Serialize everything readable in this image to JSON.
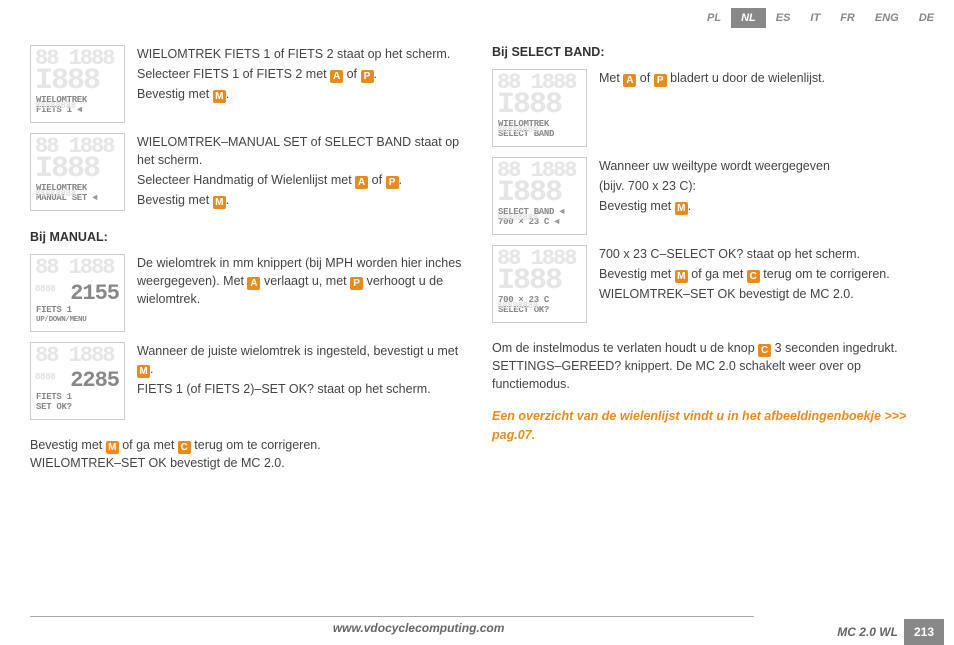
{
  "lang_tabs": [
    "PL",
    "NL",
    "ES",
    "IT",
    "FR",
    "ENG",
    "DE"
  ],
  "active_lang": "NL",
  "left": {
    "item1": {
      "lcd1": "WIELOMTREK",
      "lcd2": "FIETS 1",
      "text1": "WIELOMTREK FIETS 1 of FIETS 2 staat op het scherm.",
      "text2a": "Selecteer FIETS 1 of FIETS 2 met ",
      "text2b": " of ",
      "text2c": ".",
      "text3a": "Bevestig met ",
      "text3b": "."
    },
    "item2": {
      "lcd1": "WIELOMTREK",
      "lcd2": "MANUAL SET",
      "text1": "WIELOMTREK–MANUAL SET of SELECT BAND staat op het scherm.",
      "text2a": "Selecteer Handmatig of Wielenlijst met ",
      "text2b": " of ",
      "text2c": ".",
      "text3a": "Bevestig met ",
      "text3b": "."
    },
    "heading_manual": "Bij MANUAL:",
    "item3": {
      "lcd_big": "2155",
      "lcd1": "FIETS 1",
      "lcd2": "UP/DOWN/MENU",
      "text1a": "De wielomtrek in mm knippert (bij MPH worden hier inches weergegeven). Met ",
      "text1b": " verlaagt u, met ",
      "text1c": " verhoogt u de wielomtrek."
    },
    "item4": {
      "lcd_big": "2285",
      "lcd1": "FIETS 1",
      "lcd2": "SET OK?",
      "text1a": "Wanneer de juiste wielomtrek is ingesteld, bevestigt u met ",
      "text1b": ".",
      "text2": "FIETS 1 (of FIETS 2)–SET OK? staat op het scherm."
    },
    "bottom1a": "Bevestig met ",
    "bottom1b": " of ga met ",
    "bottom1c": " terug om te corrigeren.",
    "bottom2": "WIELOMTREK–SET OK bevestigt de MC 2.0."
  },
  "right": {
    "heading_band": "Bij SELECT BAND:",
    "item1": {
      "lcd1": "WIELOMTREK",
      "lcd2": "SELECT BAND",
      "text1a": "Met ",
      "text1b": " of ",
      "text1c": " bladert u door de wielenlijst."
    },
    "item2": {
      "lcd1": "SELECT BAND",
      "lcd2": "700 × 23 C",
      "text1": "Wanneer uw weiltype wordt weergegeven",
      "text2": "(bijv. 700 x 23 C):",
      "text3a": "Bevestig met ",
      "text3b": "."
    },
    "item3": {
      "lcd1": "700 × 23 C",
      "lcd2": "SELECT OK?",
      "text1": "700 x 23 C–SELECT OK? staat op het scherm.",
      "text2a": "Bevestig met ",
      "text2b": " of ga met ",
      "text2c": " terug om te corrigeren.",
      "text3": "WIELOMTREK–SET OK bevestigt de MC 2.0."
    },
    "exit1a": "Om de instelmodus te verlaten houdt u de knop ",
    "exit1b": " 3 seconden ingedrukt. SETTINGS–GEREED? knippert. De MC 2.0 schakelt weer over op functiemodus.",
    "highlight": "Een overzicht van de wielenlijst vindt u in het afbeeldingenboekje >>> pag.07."
  },
  "footer": {
    "url": "www.vdocyclecomputing.com",
    "model": "MC 2.0 WL",
    "page": "213"
  },
  "icons": {
    "A": "A",
    "P": "P",
    "M": "M",
    "C": "C"
  }
}
